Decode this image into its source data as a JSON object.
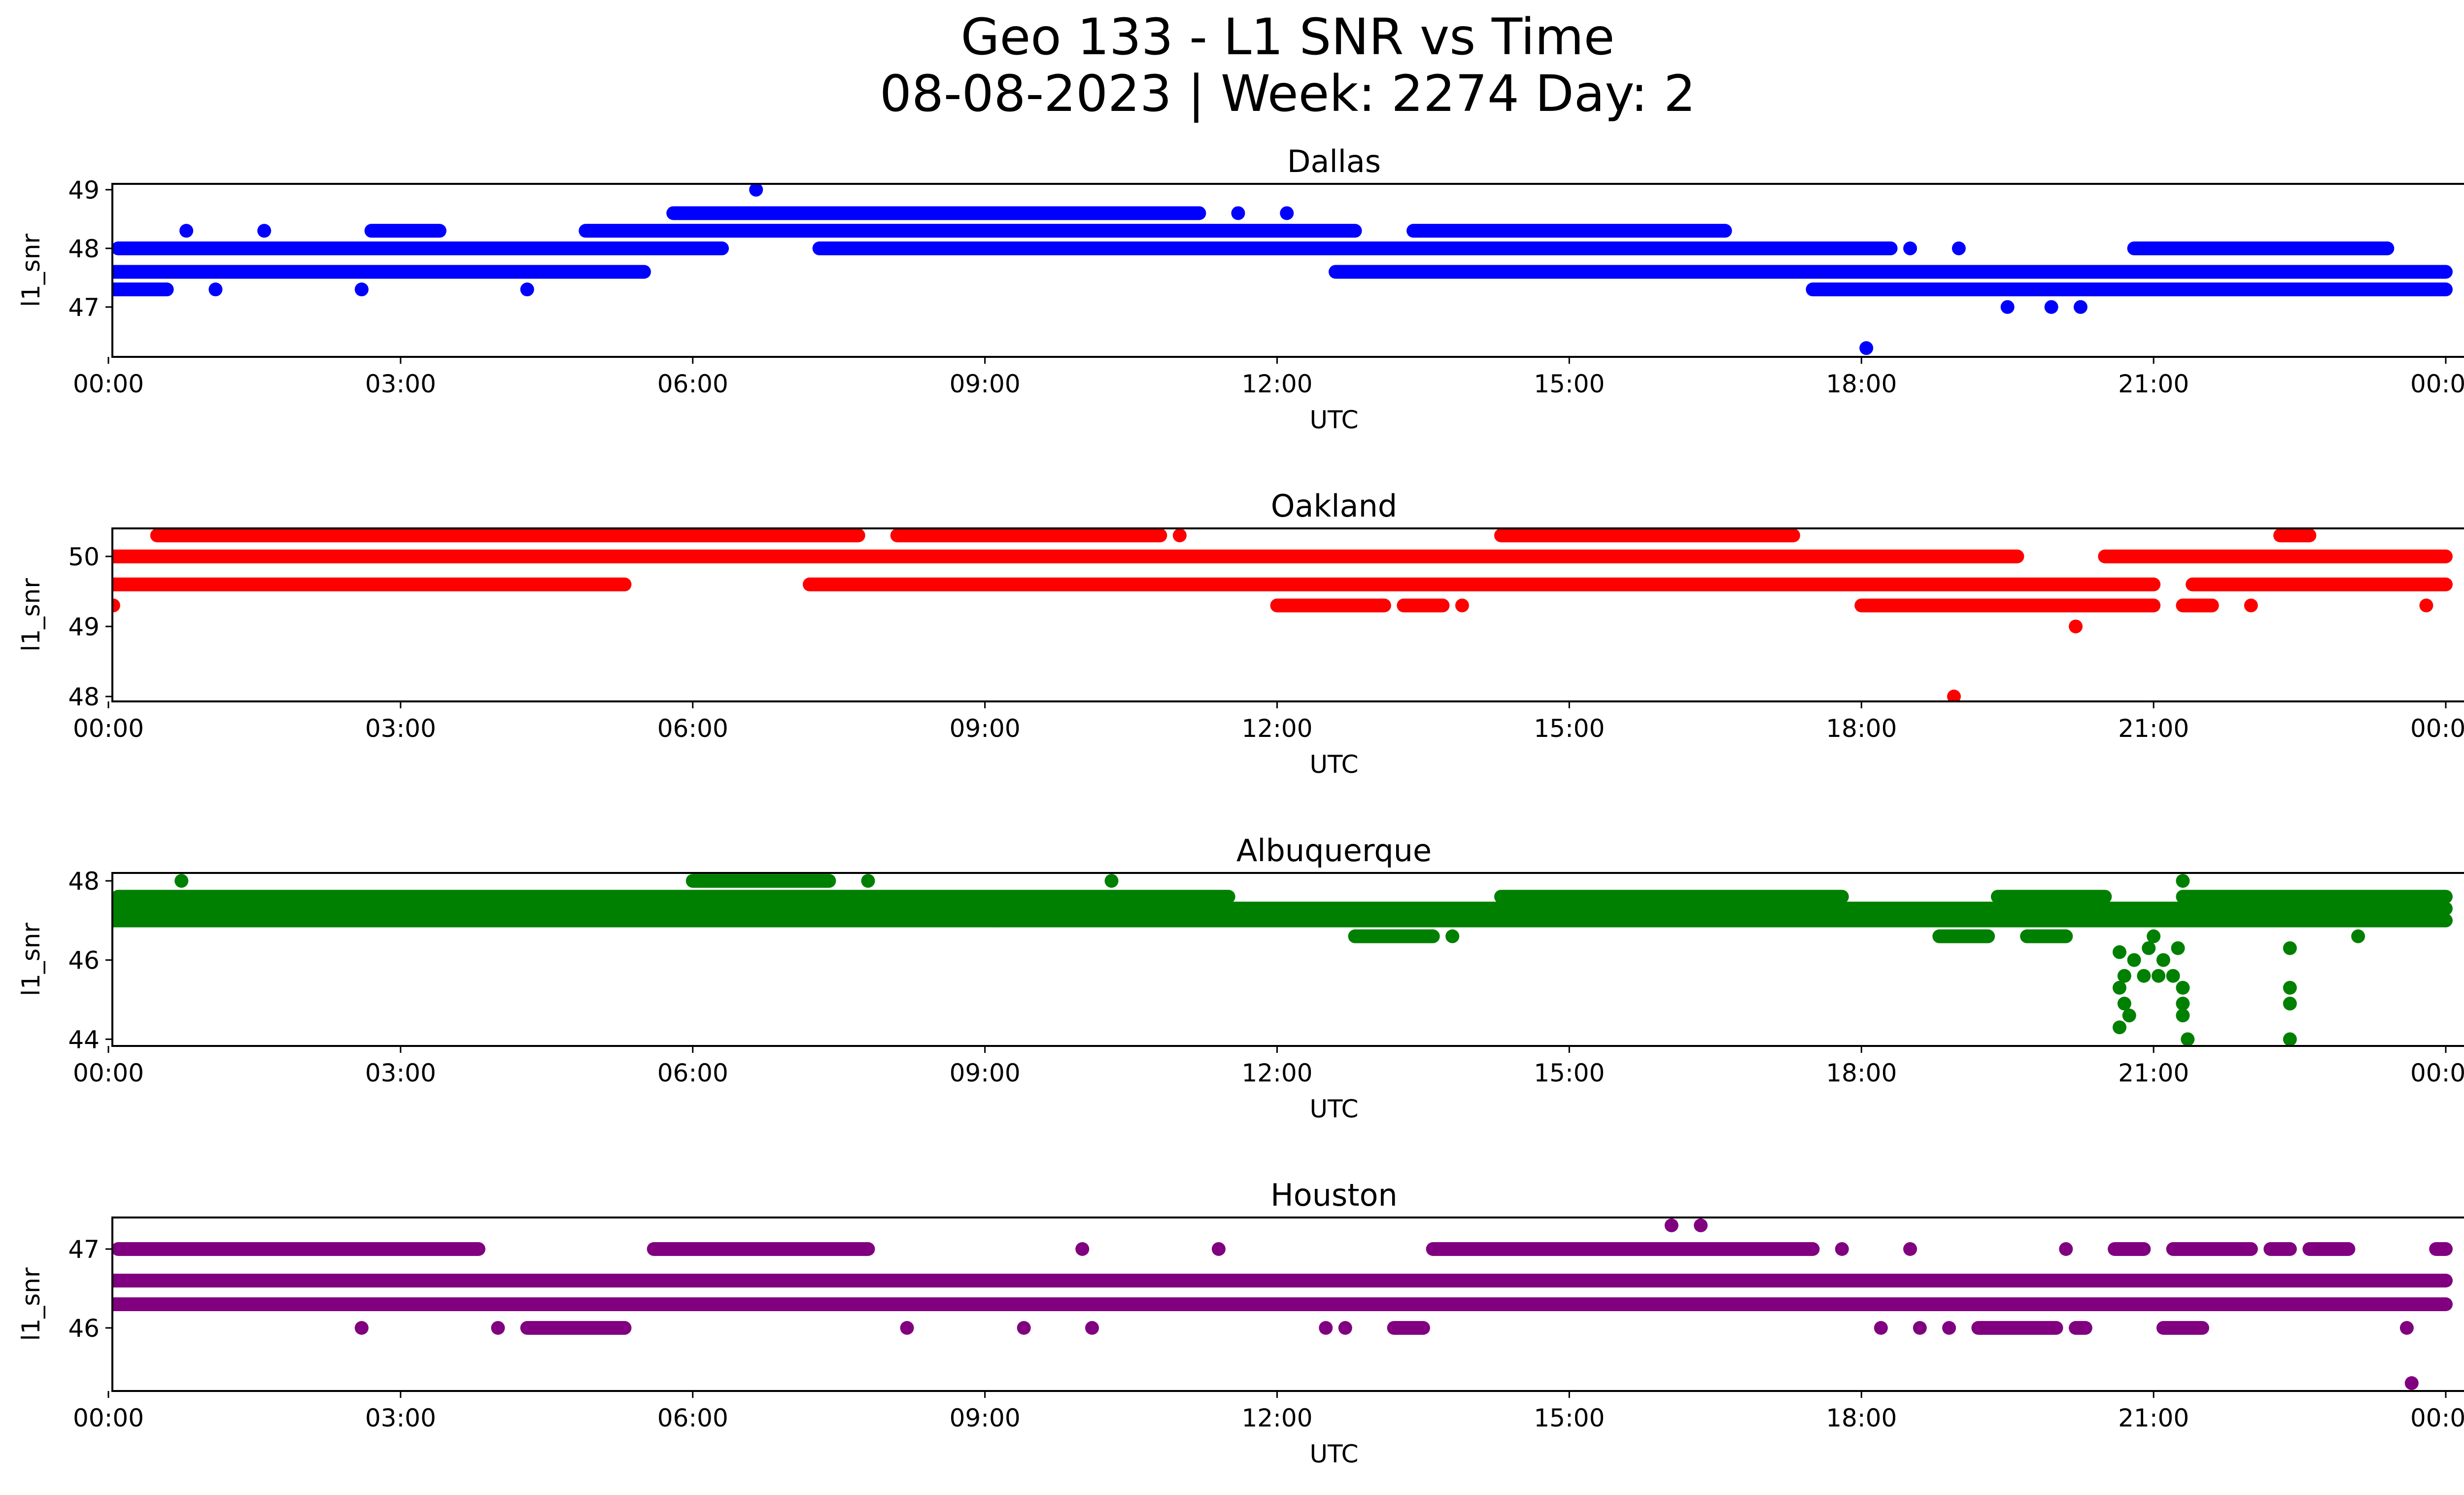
{
  "figure": {
    "title": "Geo 133 - L1 SNR vs Time",
    "subtitle": "08-08-2023 | Week: 2274 Day: 2"
  },
  "chart_data": [
    {
      "type": "scatter",
      "title": "Dallas",
      "color": "#0000ff",
      "xlabel": "UTC",
      "ylabel": "l1_snr",
      "x_unit": "hours UTC",
      "xlim": [
        "00:00",
        "24:00"
      ],
      "ylim": [
        46.15,
        49.1
      ],
      "x_ticks": [
        "00:00",
        "03:00",
        "06:00",
        "09:00",
        "12:00",
        "15:00",
        "18:00",
        "21:00",
        "00:00"
      ],
      "y_ticks": [
        "47",
        "48",
        "49"
      ],
      "bands": [
        {
          "y": 47.3,
          "ranges": [
            [
              0.0,
              0.6
            ],
            [
              2.6,
              2.6
            ],
            [
              4.3,
              4.3
            ],
            [
              17.5,
              24.0
            ]
          ]
        },
        {
          "y": 47.6,
          "ranges": [
            [
              0.0,
              5.5
            ],
            [
              12.6,
              24.0
            ]
          ]
        },
        {
          "y": 48.0,
          "ranges": [
            [
              0.1,
              6.3
            ],
            [
              7.3,
              18.3
            ],
            [
              18.5,
              18.5
            ],
            [
              19.0,
              19.0
            ],
            [
              20.8,
              23.4
            ]
          ]
        },
        {
          "y": 48.3,
          "ranges": [
            [
              0.8,
              0.8
            ],
            [
              1.6,
              1.6
            ],
            [
              2.7,
              3.4
            ],
            [
              4.9,
              12.8
            ],
            [
              13.4,
              16.6
            ]
          ]
        },
        {
          "y": 48.6,
          "ranges": [
            [
              5.8,
              11.2
            ],
            [
              11.6,
              11.6
            ],
            [
              12.1,
              12.1
            ]
          ]
        }
      ],
      "points": [
        {
          "x": 6.65,
          "y": 49.0
        },
        {
          "x": 18.05,
          "y": 46.3
        },
        {
          "x": 19.5,
          "y": 47.0
        },
        {
          "x": 19.95,
          "y": 47.0
        },
        {
          "x": 20.25,
          "y": 47.0
        },
        {
          "x": 1.1,
          "y": 47.3
        }
      ]
    },
    {
      "type": "scatter",
      "title": "Oakland",
      "color": "#ff0000",
      "xlabel": "UTC",
      "ylabel": "l1_snr",
      "x_unit": "hours UTC",
      "xlim": [
        "00:00",
        "24:00"
      ],
      "ylim": [
        47.93,
        50.4
      ],
      "x_ticks": [
        "00:00",
        "03:00",
        "06:00",
        "09:00",
        "12:00",
        "15:00",
        "18:00",
        "21:00",
        "00:00"
      ],
      "y_ticks": [
        "48",
        "49",
        "50"
      ],
      "bands": [
        {
          "y": 49.3,
          "ranges": [
            [
              0.0,
              0.05
            ],
            [
              12.0,
              13.1
            ],
            [
              13.3,
              13.7
            ],
            [
              13.9,
              13.9
            ],
            [
              18.0,
              21.0
            ],
            [
              21.3,
              21.6
            ],
            [
              22.0,
              22.0
            ],
            [
              23.8,
              23.8
            ]
          ]
        },
        {
          "y": 49.6,
          "ranges": [
            [
              0.0,
              5.3
            ],
            [
              7.2,
              21.0
            ],
            [
              21.4,
              24.0
            ]
          ]
        },
        {
          "y": 50.0,
          "ranges": [
            [
              0.0,
              19.6
            ],
            [
              20.5,
              24.0
            ]
          ]
        },
        {
          "y": 50.3,
          "ranges": [
            [
              0.5,
              7.7
            ],
            [
              8.1,
              10.8
            ],
            [
              11.0,
              11.0
            ],
            [
              14.3,
              17.3
            ],
            [
              22.3,
              22.6
            ]
          ]
        }
      ],
      "points": [
        {
          "x": 18.95,
          "y": 48.0
        },
        {
          "x": 20.2,
          "y": 49.0
        }
      ]
    },
    {
      "type": "scatter",
      "title": "Albuquerque",
      "color": "#008000",
      "xlabel": "UTC",
      "ylabel": "l1_snr",
      "x_unit": "hours UTC",
      "xlim": [
        "00:00",
        "24:00"
      ],
      "ylim": [
        43.83,
        48.2
      ],
      "x_ticks": [
        "00:00",
        "03:00",
        "06:00",
        "09:00",
        "12:00",
        "15:00",
        "18:00",
        "21:00",
        "00:00"
      ],
      "y_ticks": [
        "44",
        "46",
        "48"
      ],
      "bands": [
        {
          "y": 46.6,
          "ranges": [
            [
              12.8,
              13.6
            ],
            [
              13.8,
              13.8
            ],
            [
              18.8,
              19.3
            ],
            [
              19.7,
              20.1
            ]
          ]
        },
        {
          "y": 47.0,
          "ranges": [
            [
              0.0,
              24.0
            ]
          ]
        },
        {
          "y": 47.3,
          "ranges": [
            [
              0.0,
              24.0
            ]
          ]
        },
        {
          "y": 47.6,
          "ranges": [
            [
              0.1,
              11.5
            ],
            [
              14.3,
              17.8
            ],
            [
              19.4,
              20.5
            ],
            [
              21.3,
              24.0
            ]
          ]
        },
        {
          "y": 48.0,
          "ranges": [
            [
              0.75,
              0.75
            ],
            [
              6.0,
              7.4
            ],
            [
              7.8,
              7.8
            ],
            [
              10.3,
              10.3
            ],
            [
              21.3,
              21.3
            ]
          ]
        }
      ],
      "points": [
        {
          "x": 9.1,
          "y": 47.0
        },
        {
          "x": 20.65,
          "y": 46.2
        },
        {
          "x": 20.7,
          "y": 45.6
        },
        {
          "x": 20.65,
          "y": 45.3
        },
        {
          "x": 20.7,
          "y": 44.9
        },
        {
          "x": 20.65,
          "y": 44.3
        },
        {
          "x": 20.75,
          "y": 44.6
        },
        {
          "x": 20.8,
          "y": 46.0
        },
        {
          "x": 20.9,
          "y": 45.6
        },
        {
          "x": 20.95,
          "y": 46.3
        },
        {
          "x": 21.0,
          "y": 46.6
        },
        {
          "x": 21.05,
          "y": 45.6
        },
        {
          "x": 21.1,
          "y": 46.0
        },
        {
          "x": 21.2,
          "y": 45.6
        },
        {
          "x": 21.3,
          "y": 45.3
        },
        {
          "x": 21.3,
          "y": 44.9
        },
        {
          "x": 21.3,
          "y": 44.6
        },
        {
          "x": 21.35,
          "y": 44.0
        },
        {
          "x": 21.25,
          "y": 46.3
        },
        {
          "x": 22.4,
          "y": 46.3
        },
        {
          "x": 22.4,
          "y": 45.3
        },
        {
          "x": 22.4,
          "y": 44.9
        },
        {
          "x": 22.4,
          "y": 44.0
        },
        {
          "x": 23.1,
          "y": 46.6
        }
      ]
    },
    {
      "type": "scatter",
      "title": "Houston",
      "color": "#800080",
      "xlabel": "UTC",
      "ylabel": "l1_snr",
      "x_unit": "hours UTC",
      "xlim": [
        "00:00",
        "24:00"
      ],
      "ylim": [
        45.2,
        47.4
      ],
      "x_ticks": [
        "00:00",
        "03:00",
        "06:00",
        "09:00",
        "12:00",
        "15:00",
        "18:00",
        "21:00",
        "00:00"
      ],
      "y_ticks": [
        "46",
        "47"
      ],
      "bands": [
        {
          "y": 46.0,
          "ranges": [
            [
              2.6,
              2.6
            ],
            [
              4.0,
              4.0
            ],
            [
              4.3,
              5.3
            ],
            [
              8.2,
              8.2
            ],
            [
              9.4,
              9.4
            ],
            [
              10.1,
              10.1
            ],
            [
              12.5,
              12.5
            ],
            [
              12.7,
              12.7
            ],
            [
              13.2,
              13.5
            ],
            [
              18.2,
              18.2
            ],
            [
              18.6,
              18.6
            ],
            [
              18.9,
              18.9
            ],
            [
              19.2,
              20.0
            ],
            [
              20.2,
              20.3
            ],
            [
              21.1,
              21.5
            ],
            [
              23.6,
              23.6
            ]
          ]
        },
        {
          "y": 46.3,
          "ranges": [
            [
              0.0,
              24.0
            ]
          ]
        },
        {
          "y": 46.6,
          "ranges": [
            [
              0.0,
              24.0
            ]
          ]
        },
        {
          "y": 47.0,
          "ranges": [
            [
              0.1,
              3.8
            ],
            [
              5.6,
              7.8
            ],
            [
              10.0,
              10.0
            ],
            [
              11.4,
              11.4
            ],
            [
              13.6,
              17.5
            ],
            [
              17.8,
              17.8
            ],
            [
              18.5,
              18.5
            ],
            [
              20.1,
              20.1
            ],
            [
              20.6,
              20.9
            ],
            [
              21.2,
              22.0
            ],
            [
              22.2,
              22.4
            ],
            [
              22.6,
              23.0
            ],
            [
              23.9,
              24.0
            ]
          ]
        }
      ],
      "points": [
        {
          "x": 16.05,
          "y": 47.3
        },
        {
          "x": 16.35,
          "y": 47.3
        },
        {
          "x": 23.65,
          "y": 45.3
        }
      ]
    }
  ]
}
